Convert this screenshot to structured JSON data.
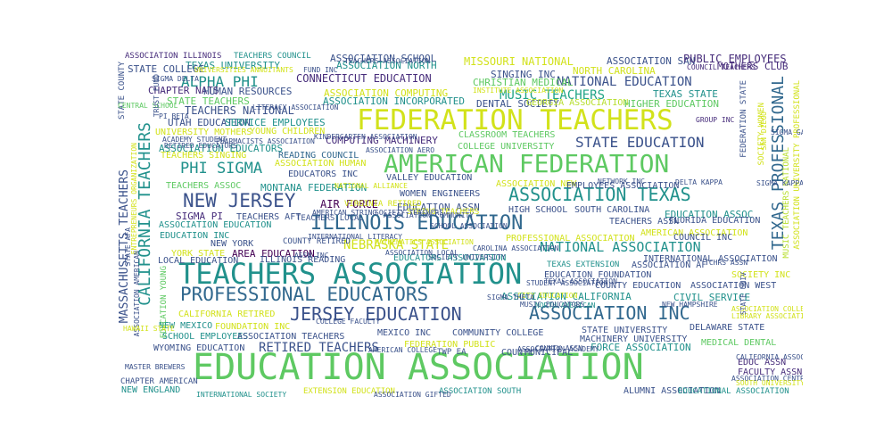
{
  "palette": {
    "yellow": "#d2e21b",
    "lime": "#b6de2b",
    "green": "#5ec962",
    "teal": "#21918c",
    "teal_light": "#20a486",
    "blue": "#3b528b",
    "blue_dark": "#31688e",
    "purple": "#472d7b",
    "violet": "#440154"
  },
  "words": [
    {
      "text": "EDUCATION ASSOCIATION",
      "color": "green"
    },
    {
      "text": "TEACHERS ASSOCIATION",
      "color": "teal"
    },
    {
      "text": "FEDERATION TEACHERS",
      "color": "yellow"
    },
    {
      "text": "AMERICAN FEDERATION",
      "color": "green"
    },
    {
      "text": "ILLINOIS EDUCATION",
      "color": "blue_dark"
    },
    {
      "text": "ASSOCIATION TEXAS",
      "color": "teal"
    },
    {
      "text": "PROFESSIONAL EDUCATORS",
      "color": "blue_dark"
    },
    {
      "text": "JERSEY EDUCATION",
      "color": "blue"
    },
    {
      "text": "ASSOCIATION INC",
      "color": "blue_dark"
    },
    {
      "text": "TEXAS PROFESSIONAL",
      "color": "blue_dark"
    },
    {
      "text": "CALIFORNIA TEACHERS",
      "color": "teal"
    },
    {
      "text": "NEW JERSEY",
      "color": "blue"
    },
    {
      "text": "PHI SIGMA",
      "color": "teal"
    },
    {
      "text": "ALPHA PHI",
      "color": "teal"
    },
    {
      "text": "STATE EDUCATION",
      "color": "blue"
    },
    {
      "text": "NATIONAL ASSOCIATION",
      "color": "teal"
    },
    {
      "text": "NATIONAL EDUCATION",
      "color": "blue"
    },
    {
      "text": "MUSIC TEACHERS",
      "color": "teal_light"
    },
    {
      "text": "NEBRASKA STATE",
      "color": "yellow"
    },
    {
      "text": "RETIRED TEACHERS",
      "color": "blue"
    },
    {
      "text": "MASSACHUSETTS TEACHERS",
      "color": "blue"
    },
    {
      "text": "STATE TEACHERS",
      "color": "green"
    },
    {
      "text": "ASSOCIATION INCORPORATED",
      "color": "teal"
    },
    {
      "text": "TEACHERS NATIONAL",
      "color": "blue"
    },
    {
      "text": "ASSOCIATION SCHOOL",
      "color": "blue"
    },
    {
      "text": "ASSOCIATION NORTH",
      "color": "teal"
    },
    {
      "text": "MISSOURI NATIONAL",
      "color": "yellow"
    },
    {
      "text": "ASSOCIATION SAN",
      "color": "blue"
    },
    {
      "text": "PUBLIC EMPLOYEES",
      "color": "purple"
    },
    {
      "text": "MOTHERS CLUB",
      "color": "purple"
    },
    {
      "text": "NORTH CAROLINA",
      "color": "yellow"
    },
    {
      "text": "TEXAS UNIVERSITY",
      "color": "teal"
    },
    {
      "text": "STATE COLLEGE",
      "color": "blue"
    },
    {
      "text": "SINGING INC",
      "color": "blue"
    },
    {
      "text": "CONNECTICUT EDUCATION",
      "color": "purple"
    },
    {
      "text": "CHRISTIAN MEDICAL",
      "color": "green"
    },
    {
      "text": "CHAPTER NATS",
      "color": "purple"
    },
    {
      "text": "HUMAN RESOURCES",
      "color": "blue"
    },
    {
      "text": "ASSOCIATION COMPUTING",
      "color": "yellow"
    },
    {
      "text": "TEXAS STATE",
      "color": "teal"
    },
    {
      "text": "UTAH EDUCATION",
      "color": "blue"
    },
    {
      "text": "SERVICE EMPLOYEES",
      "color": "teal"
    },
    {
      "text": "DENTAL SOCIETY",
      "color": "blue"
    },
    {
      "text": "GEORGIA ASSOCIATION",
      "color": "lime"
    },
    {
      "text": "HIGHER EDUCATION",
      "color": "green"
    },
    {
      "text": "UNIVERSITY MOTHERS",
      "color": "yellow"
    },
    {
      "text": "YOUNG CHILDREN",
      "color": "yellow"
    },
    {
      "text": "COMPUTING MACHINERY",
      "color": "purple"
    },
    {
      "text": "CLASSROOM TEACHERS",
      "color": "green"
    },
    {
      "text": "COLLEGE UNIVERSITY",
      "color": "green"
    },
    {
      "text": "ASSOCIATION EDUCATORS",
      "color": "teal"
    },
    {
      "text": "TEACHERS SINGING",
      "color": "yellow"
    },
    {
      "text": "READING COUNCIL",
      "color": "blue_dark"
    },
    {
      "text": "ASSOCIATION HUMAN",
      "color": "yellow"
    },
    {
      "text": "EDUCATORS INC",
      "color": "blue"
    },
    {
      "text": "VALLEY EDUCATION",
      "color": "blue"
    },
    {
      "text": "TEACHERS ASSOC",
      "color": "green"
    },
    {
      "text": "MONTANA FEDERATION",
      "color": "teal"
    },
    {
      "text": "WOMEN ENGINEERS",
      "color": "blue"
    },
    {
      "text": "ASSOCIATION NEW",
      "color": "yellow"
    },
    {
      "text": "EMPLOYEES ASSOCIATION",
      "color": "blue"
    },
    {
      "text": "AIR FORCE",
      "color": "violet"
    },
    {
      "text": "EDUCATION ASSN",
      "color": "blue"
    },
    {
      "text": "HIGH SCHOOL",
      "color": "blue"
    },
    {
      "text": "SOUTH CAROLINA",
      "color": "blue"
    },
    {
      "text": "EDUCATION ASSOC",
      "color": "teal"
    },
    {
      "text": "FLORIDA EDUCATION",
      "color": "blue"
    },
    {
      "text": "SIGMA PI",
      "color": "purple"
    },
    {
      "text": "TEACHERS AFT",
      "color": "blue"
    },
    {
      "text": "TEACHERS ASSN",
      "color": "blue"
    },
    {
      "text": "AMERICAN ASSOCIATION",
      "color": "yellow"
    },
    {
      "text": "ASSOCIATION EDUCATION",
      "color": "teal"
    },
    {
      "text": "EDUCATION INC",
      "color": "teal"
    },
    {
      "text": "COUNCIL INC",
      "color": "blue"
    },
    {
      "text": "PROFESSIONAL ASSOCIATION",
      "color": "yellow"
    },
    {
      "text": "NEW YORK",
      "color": "blue"
    },
    {
      "text": "COUNTY RETIRED",
      "color": "blue"
    },
    {
      "text": "YORK STATE",
      "color": "yellow"
    },
    {
      "text": "AREA EDUCATION",
      "color": "violet"
    },
    {
      "text": "EDUCATORS ASSOCIATION",
      "color": "teal"
    },
    {
      "text": "LOCAL EDUCATION",
      "color": "blue"
    },
    {
      "text": "ILLINOIS READING",
      "color": "blue"
    },
    {
      "text": "TEXAS EXTENSION",
      "color": "teal"
    },
    {
      "text": "ASSOCIATION AF",
      "color": "blue"
    },
    {
      "text": "INTERNATIONAL ASSOCIATION",
      "color": "blue"
    },
    {
      "text": "EDUCATION FOUNDATION",
      "color": "blue"
    },
    {
      "text": "SOCIETY INC",
      "color": "yellow"
    },
    {
      "text": "COUNTY EDUCATION",
      "color": "blue"
    },
    {
      "text": "ASSOCIATION WEST",
      "color": "blue"
    },
    {
      "text": "CIVIL SERVICE",
      "color": "teal"
    },
    {
      "text": "ASSOCIATION CALIFORNIA",
      "color": "teal"
    },
    {
      "text": "CALIFORNIA RETIRED",
      "color": "yellow"
    },
    {
      "text": "FOUNDATION INC",
      "color": "yellow"
    },
    {
      "text": "NEW MEXICO",
      "color": "teal"
    },
    {
      "text": "SCHOOL EMPLOYEES",
      "color": "teal"
    },
    {
      "text": "ASSOCIATION TEACHERS",
      "color": "blue"
    },
    {
      "text": "WYOMING EDUCATION",
      "color": "blue"
    },
    {
      "text": "MEXICO INC",
      "color": "blue"
    },
    {
      "text": "COMMUNITY COLLEGE",
      "color": "blue"
    },
    {
      "text": "STATE UNIVERSITY",
      "color": "blue"
    },
    {
      "text": "MACHINERY UNIVERSITY",
      "color": "blue"
    },
    {
      "text": "DELAWARE STATE",
      "color": "blue"
    },
    {
      "text": "MEDICAL DENTAL",
      "color": "green"
    },
    {
      "text": "FEDERATION PUBLIC",
      "color": "yellow"
    },
    {
      "text": "TWP EA",
      "color": "blue"
    },
    {
      "text": "COUNTY",
      "color": "blue"
    },
    {
      "text": "MUNICIPAL",
      "color": "blue"
    },
    {
      "text": "FORCE ASSOCIATION",
      "color": "teal"
    },
    {
      "text": "EDUC ASSN",
      "color": "purple"
    },
    {
      "text": "FACULTY ASSN",
      "color": "purple"
    },
    {
      "text": "CHAPTER AMERICAN",
      "color": "blue"
    },
    {
      "text": "NEW ENGLAND",
      "color": "teal"
    },
    {
      "text": "ALUMNI ASSOCIATION",
      "color": "blue"
    },
    {
      "text": "EDUCATIONAL ASSOCIATION",
      "color": "teal"
    },
    {
      "text": "ASSOCIATION SOUTH",
      "color": "teal"
    },
    {
      "text": "EXTENSION EDUCATION",
      "color": "yellow"
    },
    {
      "text": "ASSOCIATION ILLINOIS",
      "color": "purple"
    },
    {
      "text": "TEACHERS COUNCIL",
      "color": "teal"
    },
    {
      "text": "STATE COUNTY",
      "color": "blue"
    },
    {
      "text": "ENTREPRENEURS ORGANIZATION",
      "color": "yellow"
    },
    {
      "text": "EDUCATION YOUNG",
      "color": "green"
    },
    {
      "text": "FEDERATION STATE",
      "color": "blue"
    },
    {
      "text": "SOCIETY WOMEN",
      "color": "yellow"
    },
    {
      "text": "ASSOCIATION UNIVERSITY PROFESSIONAL",
      "color": "yellow"
    },
    {
      "text": "MUSIC TEACHERS NATIONAL",
      "color": "lime"
    },
    {
      "text": "TEACHERS LOCAL",
      "color": "blue"
    },
    {
      "text": "VIRGINIA RETIRED",
      "color": "yellow"
    },
    {
      "text": "AMERICAN STRING",
      "color": "blue"
    },
    {
      "text": "STRING TEACHERS",
      "color": "yellow"
    },
    {
      "text": "SAN DIEGO",
      "color": "yellow"
    },
    {
      "text": "PI BETA",
      "color": "blue"
    },
    {
      "text": "SIGMA DELTA",
      "color": "blue"
    },
    {
      "text": "CENTRAL SCHOOL",
      "color": "green"
    },
    {
      "text": "MASTER BREWERS",
      "color": "blue"
    },
    {
      "text": "INTERNATIONAL SOCIETY",
      "color": "teal"
    },
    {
      "text": "ASSOCIATION GIFTED",
      "color": "blue"
    },
    {
      "text": "COUNCIL TEACHERS",
      "color": "purple"
    },
    {
      "text": "GROUP INC",
      "color": "purple"
    },
    {
      "text": "SIGMA GAMMA",
      "color": "blue"
    },
    {
      "text": "NORTH AMERICAN",
      "color": "teal"
    },
    {
      "text": "ASSOCIATION COLLEGE",
      "color": "yellow"
    },
    {
      "text": "LIBRARY ASSOCIATION",
      "color": "yellow"
    },
    {
      "text": "CALIFORNIA ASSOCIATION",
      "color": "blue"
    },
    {
      "text": "ASSOCIATION CENTRAL",
      "color": "blue"
    },
    {
      "text": "SOUTH UNIVERSITY",
      "color": "yellow"
    },
    {
      "text": "NEW HAMPSHIRE",
      "color": "blue"
    },
    {
      "text": "RETIRED EDUCATORS",
      "color": "blue"
    },
    {
      "text": "PHARMACISTS ASSOCIATION",
      "color": "blue"
    },
    {
      "text": "STUDENT ASSOCIATION",
      "color": "blue"
    },
    {
      "text": "MUSIC EDUCATORS",
      "color": "blue"
    },
    {
      "text": "CITY EDUCATION",
      "color": "yellow"
    },
    {
      "text": "SIGMA THETA",
      "color": "blue"
    },
    {
      "text": "SIGMA KAPPA",
      "color": "blue"
    },
    {
      "text": "DELTA KAPPA",
      "color": "blue"
    },
    {
      "text": "NETWORK INC",
      "color": "blue"
    },
    {
      "text": "CAROLINA ASSOCIATION",
      "color": "blue"
    },
    {
      "text": "ASSOCIATION ACADEMY",
      "color": "blue"
    },
    {
      "text": "AMERICAN COLLEGE",
      "color": "blue"
    },
    {
      "text": "TRUST FUND",
      "color": "blue"
    },
    {
      "text": "TEACHERS ASSOCIATION",
      "color": "blue"
    },
    {
      "text": "LITERACY ASSOCIATION",
      "color": "blue"
    },
    {
      "text": "FUND INC",
      "color": "blue"
    },
    {
      "text": "UNIVERSITIES ANNUITANTS",
      "color": "yellow"
    },
    {
      "text": "ASSOCIATION AMERICAN",
      "color": "blue"
    },
    {
      "text": "SOCIETY TEACHERS",
      "color": "blue"
    },
    {
      "text": "NATIONAL ALLIANCE",
      "color": "yellow"
    },
    {
      "text": "ACADEMY STUDENT",
      "color": "blue"
    },
    {
      "text": "TEXAS ASSOCIATION",
      "color": "blue"
    },
    {
      "text": "ASSOCIATION COMMUNITY",
      "color": "blue"
    },
    {
      "text": "INTERNATIONAL LITERACY",
      "color": "blue"
    },
    {
      "text": "MATHEMATICS ASSOCIATION",
      "color": "yellow"
    },
    {
      "text": "STATE AFA",
      "color": "blue"
    },
    {
      "text": "TCHRS ASSN",
      "color": "blue"
    },
    {
      "text": "COUNTY ASSN",
      "color": "blue"
    },
    {
      "text": "INSTITUTE ASSOCIATION",
      "color": "yellow"
    },
    {
      "text": "KINDERGARTEN ASSOCIATION",
      "color": "blue"
    },
    {
      "text": "STATE UNIV",
      "color": "blue"
    },
    {
      "text": "HAWAII STATE",
      "color": "yellow"
    },
    {
      "text": "ASSN INC",
      "color": "blue"
    },
    {
      "text": "SOCIETY UNIVERSITY",
      "color": "blue"
    },
    {
      "text": "ASSOCIATION LOCAL",
      "color": "blue"
    },
    {
      "text": "COLLEGE FACULTY",
      "color": "blue"
    },
    {
      "text": "SCHOOL ASSOCIATION",
      "color": "blue"
    },
    {
      "text": "ASSOCIATION AERO",
      "color": "blue"
    }
  ]
}
